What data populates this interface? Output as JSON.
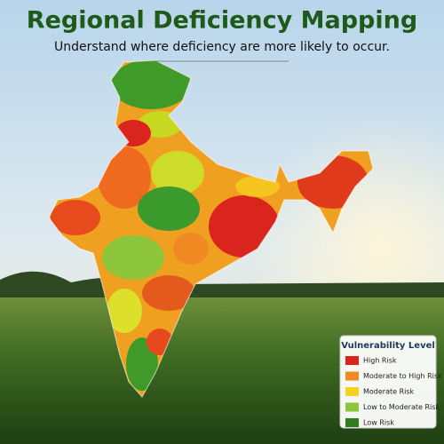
{
  "header": {
    "title": "Regional Deficiency Mapping",
    "subtitle": "Understand where deficiency are more likely to occur."
  },
  "legend": {
    "title": "Vulnerability Level",
    "items": [
      {
        "label": "High Risk",
        "color": "#d9251d"
      },
      {
        "label": "Moderate to High Risk",
        "color": "#f08a22"
      },
      {
        "label": "Moderate Risk",
        "color": "#f4d21f"
      },
      {
        "label": "Low to Moderate Risk",
        "color": "#8cc43a"
      },
      {
        "label": "Low Risk",
        "color": "#2e7d1f"
      }
    ]
  }
}
